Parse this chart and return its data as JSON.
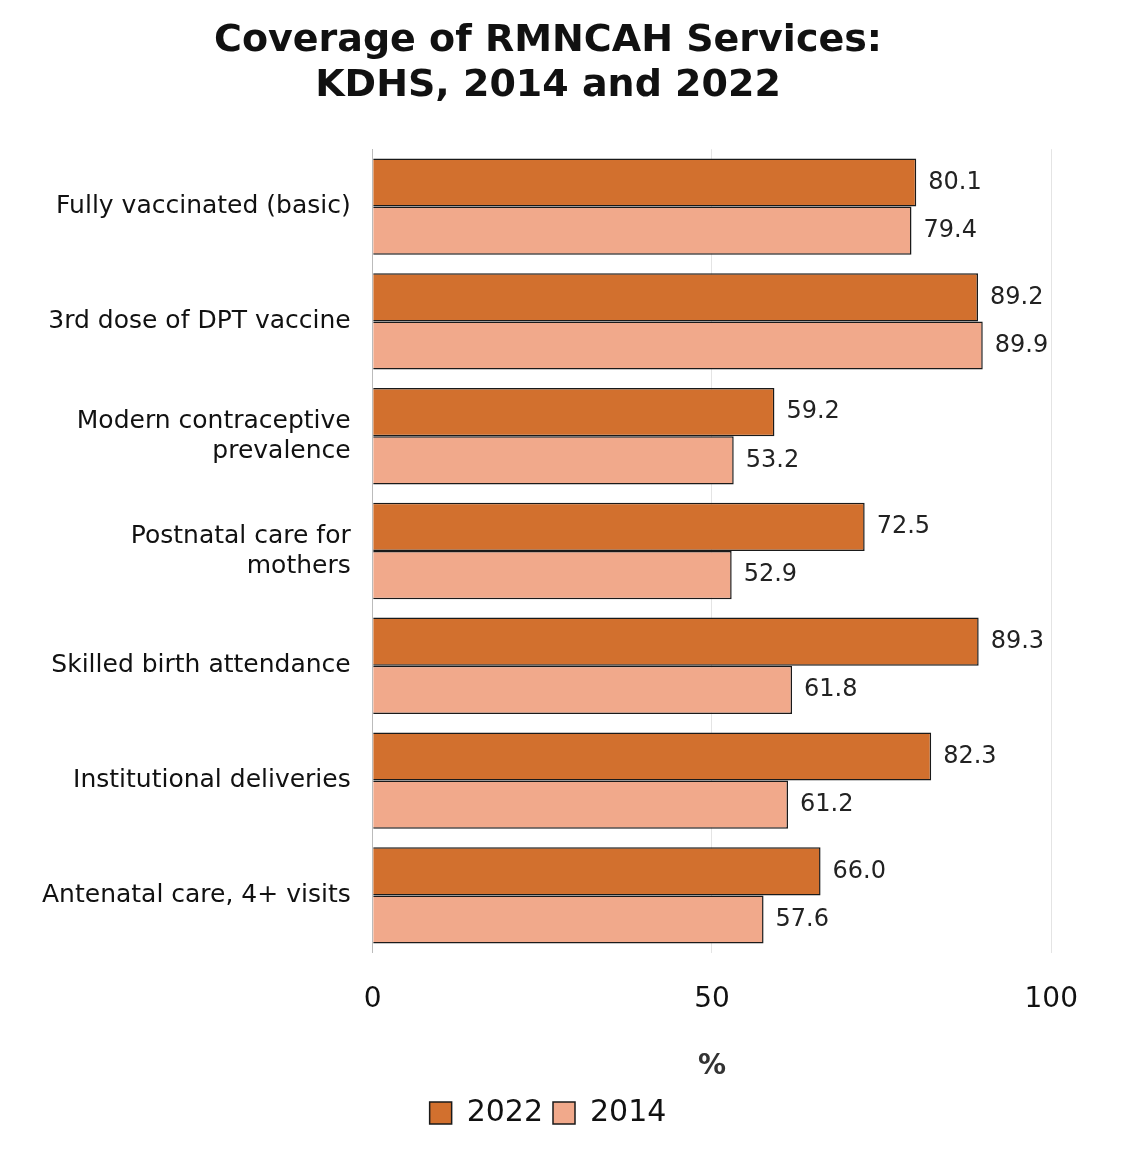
{
  "chart_data": {
    "type": "bar",
    "orientation": "horizontal",
    "title": "Coverage of RMNCAH Services: KDHS, 2014 and 2022",
    "xlabel": "%",
    "categories": [
      "Fully vaccinated (basic)",
      "3rd dose of DPT vaccine",
      "Modern contraceptive prevalence",
      "Postnatal care for mothers",
      "Skilled birth attendance",
      "Institutional deliveries",
      "Antenatal care, 4+ visits"
    ],
    "series": [
      {
        "name": "2022",
        "color": "#d2702e",
        "values": [
          80.1,
          89.2,
          59.2,
          72.5,
          89.3,
          82.3,
          66.0
        ]
      },
      {
        "name": "2014",
        "color": "#f1a98b",
        "values": [
          79.4,
          89.9,
          53.2,
          52.9,
          61.8,
          61.2,
          57.6
        ]
      }
    ],
    "value_labels": [
      [
        "80.1",
        "89.2",
        "59.2",
        "72.5",
        "89.3",
        "82.3",
        "66.0"
      ],
      [
        "79.4",
        "89.9",
        "53.2",
        "52.9",
        "61.8",
        "61.2",
        "57.6"
      ]
    ],
    "xlim": [
      0,
      100
    ],
    "xticks": [
      0,
      50,
      100
    ],
    "grid": "x",
    "legend": "bottom"
  }
}
